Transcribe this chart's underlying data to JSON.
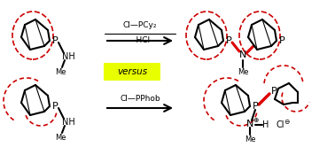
{
  "versus_text": "versus",
  "versus_bg": "#e8ff00",
  "top_reagent_top": "Cl—PCy₂",
  "top_reagent_bot": "−HCl",
  "bot_reagent": "Cl—PPhob",
  "red_color": "#cc0000",
  "bond_color": "#000000",
  "red_bond_color": "#dd0000",
  "background": "#ffffff"
}
